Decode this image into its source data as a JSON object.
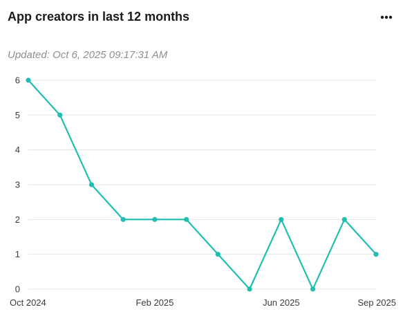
{
  "card": {
    "title": "App creators in last 12 months",
    "updated": "Updated: Oct 6, 2025 09:17:31 AM",
    "menu_icon": "more-horizontal-icon"
  },
  "colors": {
    "line": "#1ebfb0",
    "grid": "#e6e6e6",
    "text": "#3a3a3a"
  },
  "chart_data": {
    "type": "line",
    "title": "",
    "xlabel": "",
    "ylabel": "",
    "x": [
      "2024-10",
      "2024-11",
      "2024-12",
      "2025-01",
      "2025-02",
      "2025-03",
      "2025-04",
      "2025-05",
      "2025-06",
      "2025-07",
      "2025-08",
      "2025-09"
    ],
    "x_tick_labels": [
      {
        "at": "2024-10",
        "label": "Oct 2024"
      },
      {
        "at": "2025-02",
        "label": "Feb 2025"
      },
      {
        "at": "2025-06",
        "label": "Jun 2025"
      },
      {
        "at": "2025-09",
        "label": "Sep 2025"
      }
    ],
    "y_ticks": [
      0,
      1,
      2,
      3,
      4,
      5,
      6
    ],
    "ylim": [
      0,
      6
    ],
    "grid": true,
    "series": [
      {
        "values": [
          6,
          5,
          3,
          2,
          2,
          2,
          1,
          0,
          2,
          0,
          2,
          1
        ]
      }
    ]
  }
}
